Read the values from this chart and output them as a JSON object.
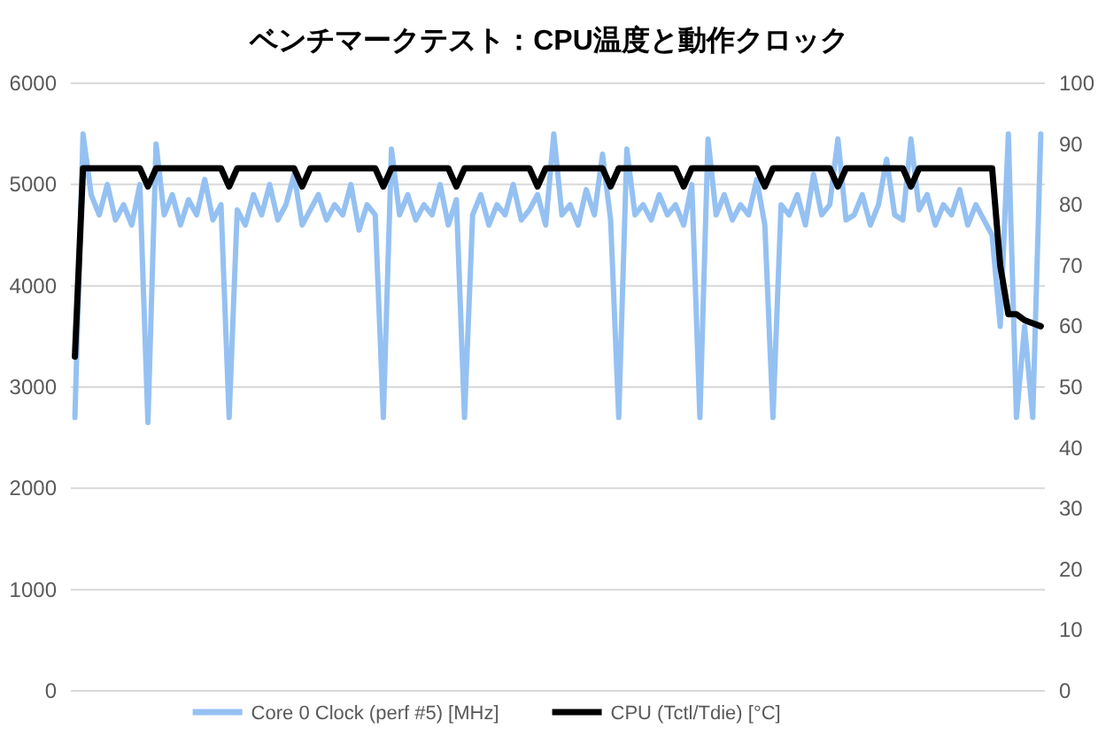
{
  "chart_data": {
    "type": "line",
    "title": "ベンチマークテスト：CPU温度と動作クロック",
    "categories": [
      null,
      null,
      null,
      null,
      null,
      null,
      null,
      null,
      null,
      null,
      null,
      null,
      null,
      null,
      null,
      null,
      null,
      null,
      null,
      null,
      null,
      null,
      null,
      null,
      null,
      null,
      null,
      null,
      null,
      null,
      null,
      null,
      null,
      null,
      null,
      null,
      null,
      null,
      null,
      null,
      null,
      null,
      null,
      null,
      null,
      null,
      null,
      null,
      null,
      null,
      null,
      null,
      null,
      null,
      null,
      null,
      null,
      null,
      null,
      null,
      null,
      null,
      null,
      null,
      null,
      null,
      null,
      null,
      null,
      null,
      null,
      null,
      null,
      null,
      null,
      null,
      null,
      null,
      null,
      null,
      null,
      null,
      null,
      null,
      null,
      null,
      null,
      null,
      null,
      null,
      null,
      null,
      null,
      null,
      null,
      null,
      null,
      null,
      null,
      null,
      null,
      null,
      null,
      null,
      null,
      null,
      null,
      null,
      null,
      null,
      null,
      null,
      null,
      null,
      null,
      null,
      null,
      null,
      null,
      null
    ],
    "series": [
      {
        "name": "Core 0 Clock (perf #5) [MHz]",
        "color": "#95c1f2",
        "values": [
          2700,
          5500,
          4900,
          4700,
          5000,
          4650,
          4800,
          4600,
          5000,
          2650,
          5400,
          4700,
          4900,
          4600,
          4850,
          4700,
          5050,
          4650,
          4800,
          2700,
          4750,
          4600,
          4900,
          4700,
          5000,
          4650,
          4800,
          5100,
          4600,
          4750,
          4900,
          4650,
          4800,
          4700,
          5000,
          4550,
          4800,
          4700,
          2700,
          5350,
          4700,
          4900,
          4650,
          4800,
          4700,
          5000,
          4600,
          4850,
          2700,
          4700,
          4900,
          4600,
          4800,
          4700,
          5000,
          4650,
          4750,
          4900,
          4600,
          5500,
          4700,
          4800,
          4600,
          4950,
          4700,
          5300,
          4650,
          2700,
          5350,
          4700,
          4800,
          4650,
          4900,
          4700,
          4800,
          4600,
          5000,
          2700,
          5450,
          4700,
          4900,
          4650,
          4800,
          4700,
          5050,
          4600,
          2700,
          4800,
          4700,
          4900,
          4600,
          5100,
          4700,
          4800,
          5450,
          4650,
          4700,
          4900,
          4600,
          4800,
          5250,
          4700,
          4650,
          5450,
          4750,
          4900,
          4600,
          4800,
          4700,
          4950,
          4600,
          4800,
          4650,
          4500,
          3600,
          5500,
          2700,
          3600,
          2700,
          5500
        ]
      },
      {
        "name": "CPU (Tctl/Tdie) [°C]",
        "color": "#000000",
        "axis": "y2",
        "values": [
          55,
          86,
          86,
          86,
          86,
          86,
          86,
          86,
          86,
          83,
          86,
          86,
          86,
          86,
          86,
          86,
          86,
          86,
          86,
          83,
          86,
          86,
          86,
          86,
          86,
          86,
          86,
          86,
          83,
          86,
          86,
          86,
          86,
          86,
          86,
          86,
          86,
          86,
          83,
          86,
          86,
          86,
          86,
          86,
          86,
          86,
          86,
          83,
          86,
          86,
          86,
          86,
          86,
          86,
          86,
          86,
          86,
          83,
          86,
          86,
          86,
          86,
          86,
          86,
          86,
          86,
          83,
          86,
          86,
          86,
          86,
          86,
          86,
          86,
          86,
          83,
          86,
          86,
          86,
          86,
          86,
          86,
          86,
          86,
          86,
          83,
          86,
          86,
          86,
          86,
          86,
          86,
          86,
          86,
          83,
          86,
          86,
          86,
          86,
          86,
          86,
          86,
          86,
          83,
          86,
          86,
          86,
          86,
          86,
          86,
          86,
          86,
          86,
          86,
          70,
          62,
          62,
          61,
          60.5,
          60
        ]
      }
    ],
    "ylim": [
      0,
      6000
    ],
    "yticks": [
      0,
      1000,
      2000,
      3000,
      4000,
      5000,
      6000
    ],
    "y2lim": [
      0,
      100
    ],
    "y2ticks": [
      0,
      10,
      20,
      30,
      40,
      50,
      60,
      70,
      80,
      90,
      100
    ],
    "grid": "y",
    "legend": "bottom",
    "marker": "none",
    "line_style": "solid"
  }
}
